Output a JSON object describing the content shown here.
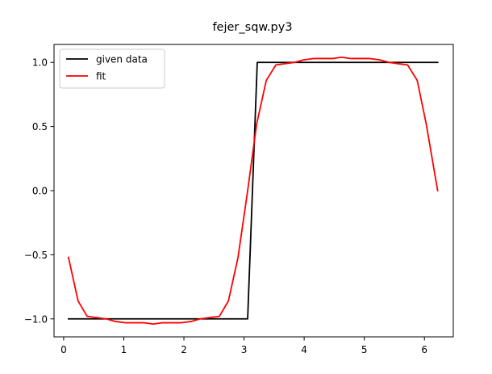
{
  "chart_data": {
    "type": "line",
    "title": "fejer_sqw.py3",
    "xlabel": "",
    "ylabel": "",
    "xlim": [
      -0.16,
      6.48
    ],
    "ylim": [
      -1.14,
      1.14
    ],
    "x_ticks": [
      0,
      1,
      2,
      3,
      4,
      5,
      6
    ],
    "x_tick_labels": [
      "0",
      "1",
      "2",
      "3",
      "4",
      "5",
      "6"
    ],
    "y_ticks": [
      -1.0,
      -0.5,
      0.0,
      0.5,
      1.0
    ],
    "y_tick_labels": [
      "−1.0",
      "−0.5",
      "0.0",
      "0.5",
      "1.0"
    ],
    "grid": false,
    "legend_position": "upper-left",
    "series": [
      {
        "name": "given data",
        "color": "#000000",
        "x": [
          0.08,
          3.06,
          3.22,
          6.22
        ],
        "y": [
          -1.0,
          -1.0,
          1.0,
          1.0
        ]
      },
      {
        "name": "fit",
        "color": "#ff0000",
        "x": [
          0.08,
          0.24,
          0.39,
          0.55,
          0.71,
          0.86,
          1.02,
          1.18,
          1.33,
          1.49,
          1.65,
          1.8,
          1.96,
          2.12,
          2.27,
          2.43,
          2.59,
          2.74,
          2.9,
          3.06,
          3.21,
          3.37,
          3.53,
          3.68,
          3.84,
          4.0,
          4.15,
          4.31,
          4.47,
          4.62,
          4.78,
          4.94,
          5.09,
          5.25,
          5.41,
          5.56,
          5.72,
          5.88,
          6.03,
          6.22
        ],
        "y": [
          -0.52,
          -0.86,
          -0.98,
          -0.99,
          -1.0,
          -1.02,
          -1.03,
          -1.03,
          -1.03,
          -1.04,
          -1.03,
          -1.03,
          -1.03,
          -1.02,
          -1.0,
          -0.99,
          -0.98,
          -0.86,
          -0.52,
          0.0,
          0.52,
          0.86,
          0.98,
          0.99,
          1.0,
          1.02,
          1.03,
          1.03,
          1.03,
          1.04,
          1.03,
          1.03,
          1.03,
          1.02,
          1.0,
          0.99,
          0.98,
          0.86,
          0.52,
          0.0
        ]
      }
    ]
  }
}
